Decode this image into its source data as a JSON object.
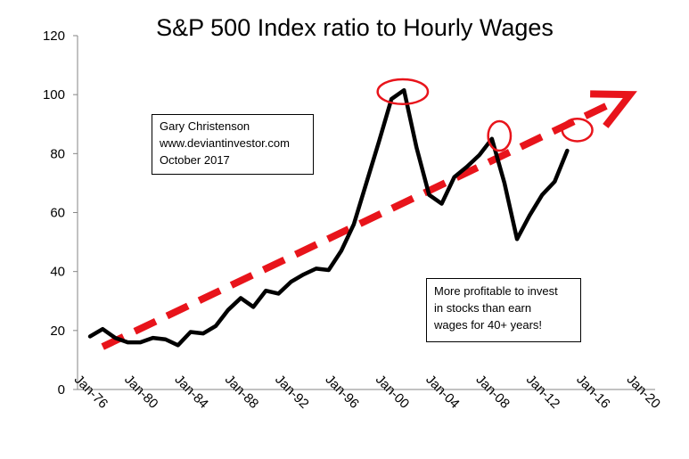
{
  "chart_data": {
    "type": "line",
    "title": "S&P 500 Index ratio to Hourly Wages",
    "ylim": [
      0,
      120
    ],
    "yticks": [
      0,
      20,
      40,
      60,
      80,
      100,
      120
    ],
    "xlim": [
      1975,
      2021
    ],
    "xtick_years": [
      1976,
      1980,
      1984,
      1988,
      1992,
      1996,
      2000,
      2004,
      2008,
      2012,
      2016,
      2020
    ],
    "xtick_labels": [
      "Jan-76",
      "Jan-80",
      "Jan-84",
      "Jan-88",
      "Jan-92",
      "Jan-96",
      "Jan-00",
      "Jan-04",
      "Jan-08",
      "Jan-12",
      "Jan-16",
      "Jan-20"
    ],
    "series": [
      {
        "color": "#000000",
        "x": [
          1976,
          1977,
          1978,
          1979,
          1980,
          1981,
          1982,
          1983,
          1984,
          1985,
          1986,
          1987,
          1988,
          1989,
          1990,
          1991,
          1992,
          1993,
          1994,
          1995,
          1996,
          1997,
          1998,
          1999,
          2000,
          2001,
          2002,
          2003,
          2004,
          2005,
          2006,
          2007,
          2008,
          2009,
          2010,
          2011,
          2012,
          2013,
          2014
        ],
        "y": [
          18.0,
          20.5,
          17.5,
          16.0,
          16.0,
          17.5,
          17.0,
          15.0,
          19.5,
          19.0,
          21.5,
          27.0,
          31.0,
          28.0,
          33.5,
          32.5,
          36.5,
          39.0,
          41.0,
          40.5,
          47.0,
          56.0,
          70.0,
          84.0,
          98.5,
          101.5,
          82.0,
          66.0,
          63.0,
          72.0,
          75.5,
          79.5,
          85.0,
          70.0,
          51.0,
          59.0,
          66.0,
          70.5,
          81.0
        ]
      }
    ],
    "trend_arrow": {
      "color": "#e8141b",
      "from": [
        1977,
        14.5
      ],
      "to": [
        2019,
        100
      ]
    },
    "annotations": {
      "credit_lines": [
        "Gary Christenson",
        "www.deviantinvestor.com",
        "October 2017"
      ],
      "note_lines": [
        "More profitable to invest",
        "in stocks than earn",
        "wages for 40+ years!"
      ],
      "circles": [
        {
          "x": 2000.9,
          "y": 101,
          "rx_years": 2.0,
          "ry_units": 4.2
        },
        {
          "x": 2008.6,
          "y": 86,
          "rx_years": 0.9,
          "ry_units": 5.0
        },
        {
          "x": 2014.8,
          "y": 88,
          "rx_years": 1.2,
          "ry_units": 3.8
        }
      ],
      "circle_color": "#e8141b"
    },
    "grid": false
  }
}
